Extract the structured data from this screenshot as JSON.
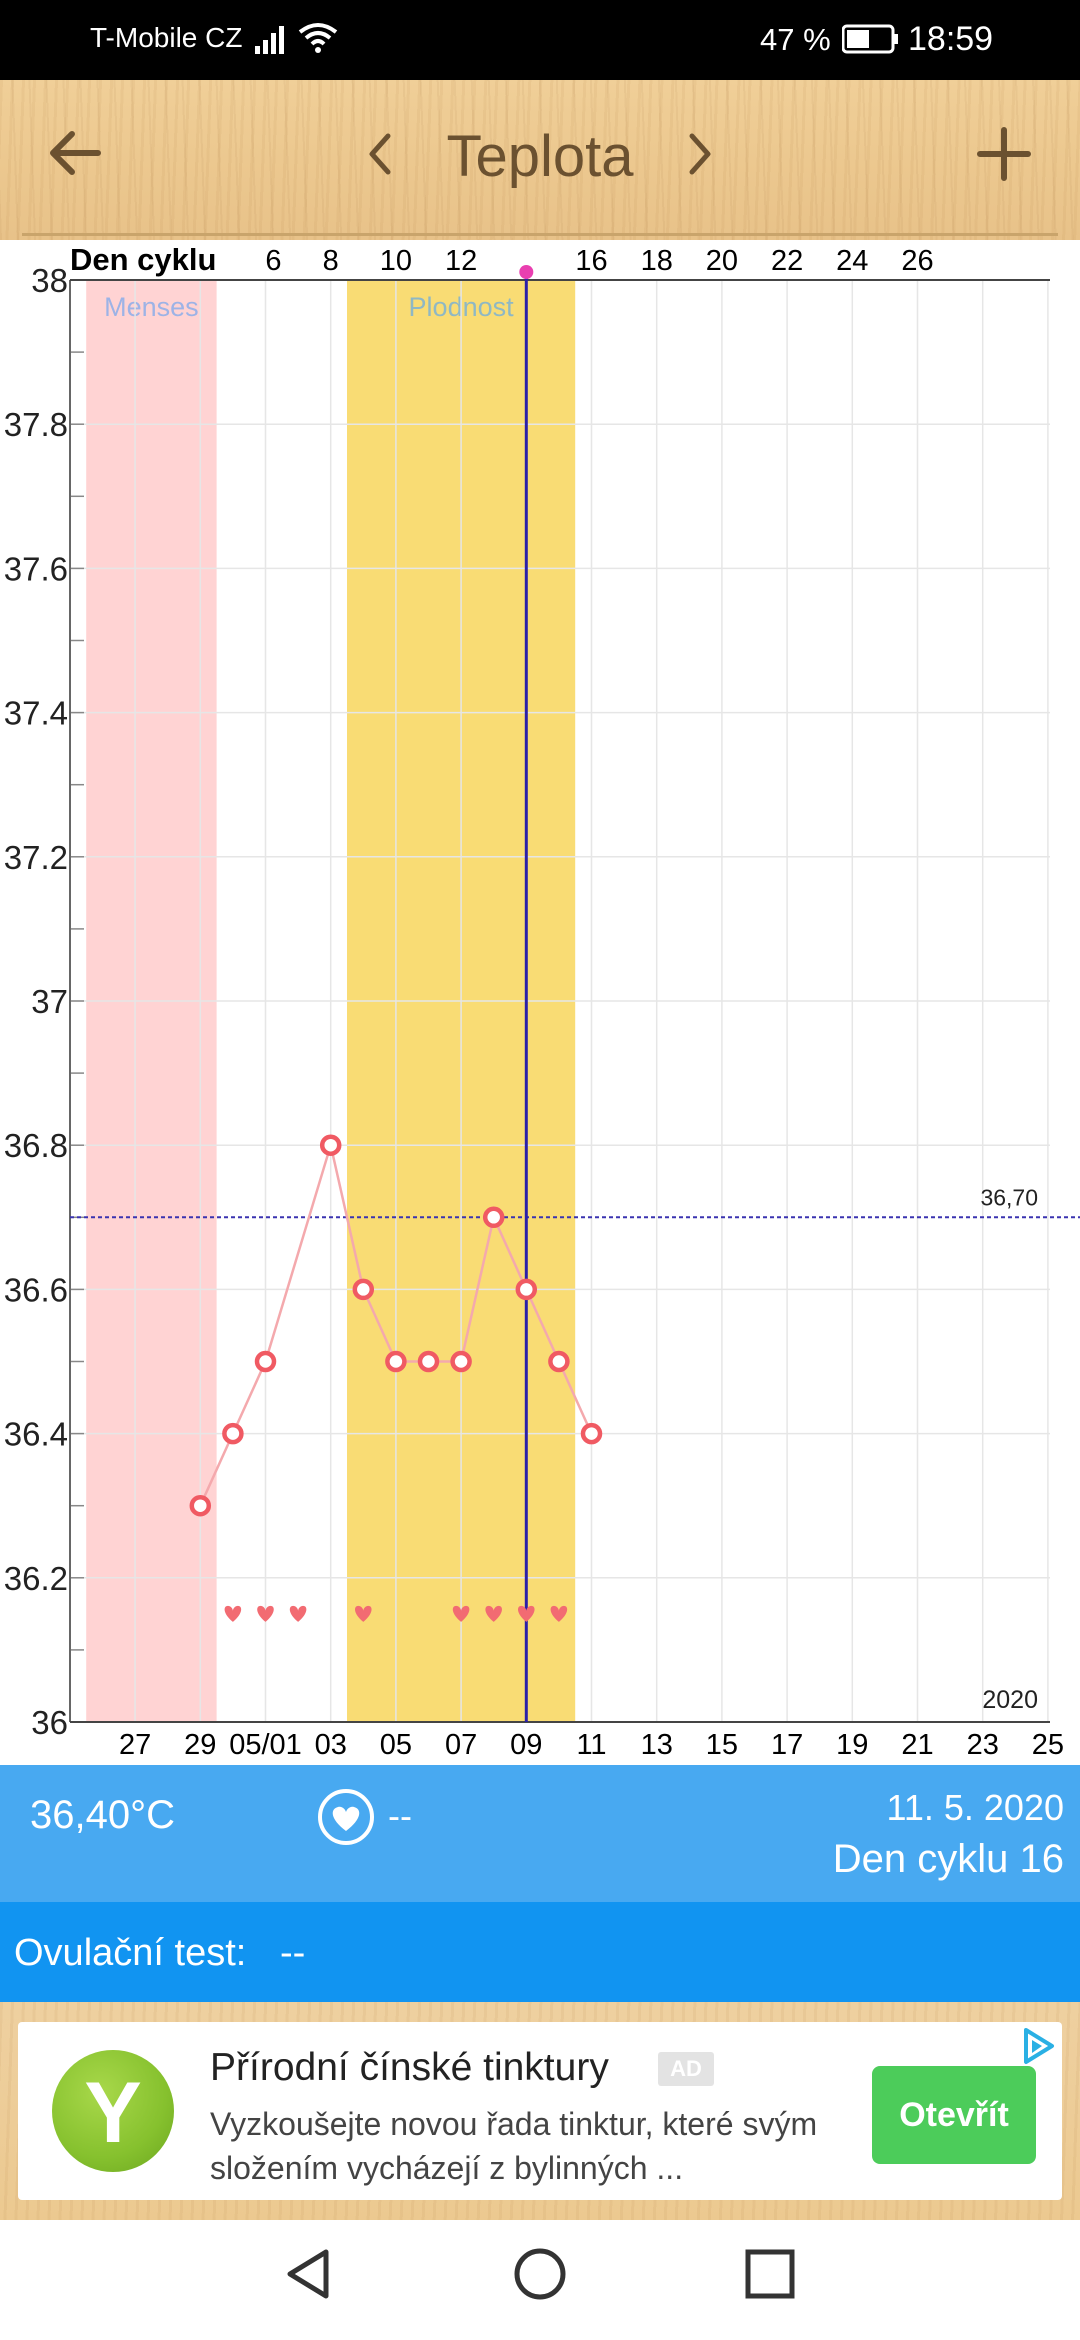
{
  "status_bar": {
    "carrier": "T-Mobile CZ",
    "battery_percent": "47 %",
    "time": "18:59",
    "icons": [
      "signal-icon",
      "wifi-icon",
      "battery-icon"
    ]
  },
  "header": {
    "title": "Teplota",
    "back_icon": "arrow-left-icon",
    "prev_icon": "chevron-left-icon",
    "next_icon": "chevron-right-icon",
    "add_icon": "plus-icon",
    "color": "#6b5130"
  },
  "chart_data": {
    "type": "line",
    "top_axis_label": "Den cyklu",
    "top_ticks": [
      "6",
      "8",
      "10",
      "12",
      "16",
      "18",
      "20",
      "22",
      "24",
      "26"
    ],
    "x_date_ticks": [
      "27",
      "29",
      "05/01",
      "03",
      "05",
      "07",
      "09",
      "11",
      "13",
      "15",
      "17",
      "19",
      "21",
      "23",
      "25"
    ],
    "ylim": [
      36,
      38
    ],
    "y_ticks": [
      "38",
      "37.8",
      "37.6",
      "37.4",
      "37.2",
      "37",
      "36.8",
      "36.6",
      "36.4",
      "36.2",
      "36"
    ],
    "bands": [
      {
        "label": "Menses",
        "from_day": 1,
        "to_day": 4,
        "color": "#ffd3d3",
        "label_color": "#9db3e6"
      },
      {
        "label": "Plodnost",
        "from_day": 9,
        "to_day": 15,
        "color": "#f9dc74",
        "label_color": "#8fb8c4"
      }
    ],
    "series": [
      {
        "cycle_days": [
          4,
          5,
          6,
          8,
          9,
          10,
          11,
          12,
          13,
          14,
          15,
          16
        ],
        "dates": [
          "29",
          "30",
          "05/01",
          "03",
          "04",
          "05",
          "06",
          "07",
          "08",
          "09",
          "10",
          "11"
        ],
        "values": [
          36.3,
          36.4,
          36.5,
          36.8,
          36.6,
          36.5,
          36.5,
          36.5,
          36.7,
          36.6,
          36.5,
          36.4
        ],
        "line_color": "#f4a9ad",
        "marker_color": "#f05a63"
      }
    ],
    "hearts_cycle_days": [
      5,
      6,
      7,
      9,
      12,
      13,
      14,
      15
    ],
    "heart_color": "#f26b72",
    "selected_cycle_day": 14,
    "selected_color": "#2a1fa8",
    "reference_line": {
      "value": 36.7,
      "label": "36,70",
      "color": "#3a33b0"
    },
    "year_label": "2020",
    "grid": true
  },
  "info": {
    "temperature": "36,40°C",
    "sex": "--",
    "heart_icon": "heart-circle-icon",
    "date": "11. 5. 2020",
    "cycle_day": "Den cyklu 16"
  },
  "ovulation": {
    "label": "Ovulační test:",
    "value": "--"
  },
  "ad": {
    "logo_letter": "Y",
    "title": "Přírodní čínské tinktury",
    "badge": "AD",
    "text": "Vyzkoušejte novou řada tinktur, které svým složením vycházejí z bylinných ...",
    "button": "Otevřít",
    "choices_icon": "ad-choices-icon"
  },
  "nav": {
    "back_icon": "nav-back-icon",
    "home_icon": "nav-home-icon",
    "recents_icon": "nav-recents-icon"
  }
}
